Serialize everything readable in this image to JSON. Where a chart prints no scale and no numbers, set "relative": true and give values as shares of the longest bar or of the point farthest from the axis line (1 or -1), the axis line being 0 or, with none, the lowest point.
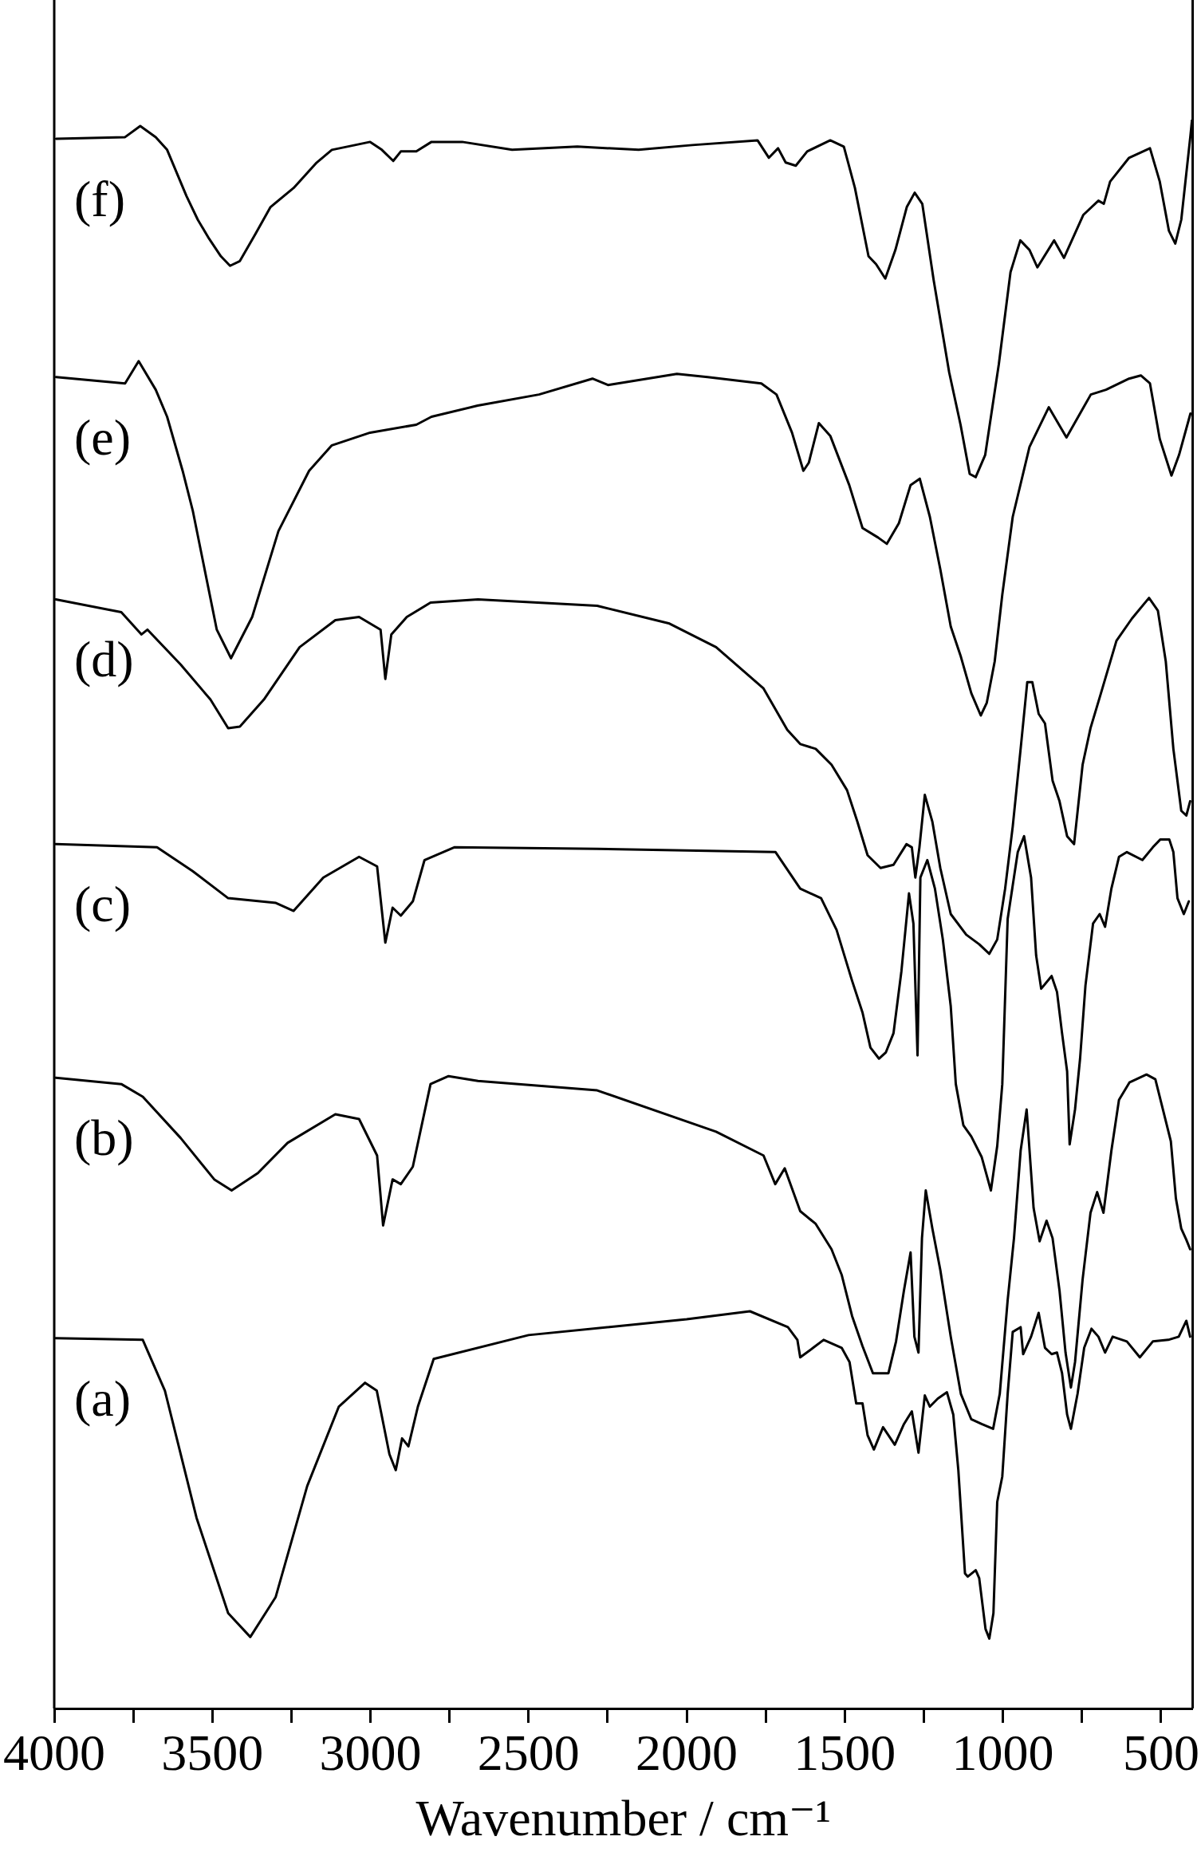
{
  "chart_data": {
    "type": "line",
    "relative": true,
    "xlabel": "Wavenumber / cm⁻¹",
    "xlim": [
      4000,
      400
    ],
    "xticks": [
      4000,
      {
        "value": 3750,
        "label": null
      },
      3500,
      {
        "value": 3250,
        "label": null
      },
      3000,
      {
        "value": 2750,
        "label": null
      },
      2500,
      {
        "value": 2250,
        "label": null
      },
      2000,
      {
        "value": 1750,
        "label": null
      },
      1500,
      {
        "value": 1250,
        "label": null
      },
      1000,
      {
        "value": 750,
        "label": null
      },
      500
    ],
    "grid": false,
    "legend": false,
    "marker": "none",
    "line_style": "solid",
    "tick_labels": "x",
    "series": [
      {
        "name": "(f)",
        "color": "#000000",
        "x": [
          3994,
          3776,
          3728,
          3679,
          3643,
          3582,
          3546,
          3510,
          3473,
          3444,
          3413,
          3364,
          3316,
          3243,
          3170,
          3122,
          3049,
          3001,
          2964,
          2928,
          2904,
          2855,
          2807,
          2710,
          2552,
          2346,
          2152,
          1982,
          1776,
          1740,
          1711,
          1687,
          1655,
          1619,
          1546,
          1503,
          1468,
          1425,
          1401,
          1372,
          1340,
          1304,
          1279,
          1255,
          1219,
          1170,
          1134,
          1105,
          1086,
          1056,
          1013,
          976,
          945,
          916,
          891,
          838,
          807,
          746,
          698,
          681,
          661,
          601,
          535,
          504,
          475,
          455,
          436,
          407,
          402
        ],
        "values": [
          0.988,
          0.989,
          0.996,
          0.989,
          0.981,
          0.952,
          0.937,
          0.925,
          0.914,
          0.908,
          0.911,
          0.928,
          0.945,
          0.957,
          0.973,
          0.981,
          0.984,
          0.986,
          0.981,
          0.974,
          0.98,
          0.98,
          0.986,
          0.986,
          0.981,
          0.983,
          0.981,
          0.984,
          0.987,
          0.976,
          0.982,
          0.973,
          0.971,
          0.98,
          0.987,
          0.983,
          0.957,
          0.914,
          0.909,
          0.9,
          0.918,
          0.945,
          0.954,
          0.947,
          0.899,
          0.841,
          0.808,
          0.777,
          0.775,
          0.789,
          0.846,
          0.904,
          0.924,
          0.918,
          0.907,
          0.924,
          0.913,
          0.94,
          0.949,
          0.947,
          0.961,
          0.976,
          0.982,
          0.961,
          0.93,
          0.922,
          0.937,
          0.99,
          1.0
        ]
      },
      {
        "name": "(e)",
        "color": "#000000",
        "x": [
          3994,
          3776,
          3733,
          3679,
          3643,
          3594,
          3562,
          3486,
          3441,
          3374,
          3291,
          3194,
          3122,
          3001,
          2855,
          2807,
          2661,
          2467,
          2298,
          2249,
          2031,
          1934,
          1764,
          1716,
          1667,
          1631,
          1614,
          1582,
          1546,
          1486,
          1444,
          1395,
          1367,
          1329,
          1292,
          1263,
          1231,
          1198,
          1165,
          1133,
          1100,
          1070,
          1051,
          1026,
          1002,
          969,
          916,
          855,
          799,
          722,
          674,
          601,
          564,
          535,
          504,
          467,
          443,
          407
        ],
        "values": [
          0.838,
          0.834,
          0.848,
          0.83,
          0.813,
          0.779,
          0.754,
          0.679,
          0.661,
          0.687,
          0.741,
          0.779,
          0.795,
          0.803,
          0.808,
          0.813,
          0.82,
          0.827,
          0.837,
          0.833,
          0.84,
          0.838,
          0.834,
          0.827,
          0.803,
          0.779,
          0.784,
          0.809,
          0.801,
          0.77,
          0.743,
          0.737,
          0.733,
          0.746,
          0.77,
          0.774,
          0.75,
          0.717,
          0.681,
          0.662,
          0.639,
          0.625,
          0.633,
          0.659,
          0.701,
          0.75,
          0.794,
          0.819,
          0.8,
          0.827,
          0.83,
          0.837,
          0.839,
          0.834,
          0.799,
          0.776,
          0.789,
          0.815
        ]
      },
      {
        "name": "(d)",
        "color": "#000000",
        "x": [
          3995,
          3788,
          3724,
          3705,
          3600,
          3506,
          3450,
          3413,
          3337,
          3224,
          3111,
          3036,
          2968,
          2953,
          2934,
          2885,
          2810,
          2660,
          2283,
          2057,
          1907,
          1757,
          1682,
          1641,
          1592,
          1542,
          1493,
          1460,
          1428,
          1387,
          1346,
          1305,
          1288,
          1277,
          1264,
          1247,
          1223,
          1198,
          1165,
          1116,
          1075,
          1043,
          1018,
          993,
          969,
          944,
          923,
          907,
          887,
          867,
          843,
          821,
          797,
          775,
          748,
          723,
          690,
          641,
          592,
          538,
          510,
          485,
          461,
          436,
          420,
          408
        ],
        "values": [
          0.698,
          0.69,
          0.676,
          0.679,
          0.657,
          0.635,
          0.617,
          0.618,
          0.635,
          0.668,
          0.685,
          0.687,
          0.679,
          0.648,
          0.676,
          0.687,
          0.696,
          0.698,
          0.694,
          0.683,
          0.668,
          0.642,
          0.616,
          0.607,
          0.604,
          0.594,
          0.578,
          0.558,
          0.537,
          0.529,
          0.531,
          0.544,
          0.542,
          0.523,
          0.542,
          0.575,
          0.558,
          0.529,
          0.5,
          0.487,
          0.481,
          0.475,
          0.484,
          0.516,
          0.555,
          0.604,
          0.646,
          0.646,
          0.626,
          0.62,
          0.584,
          0.571,
          0.549,
          0.544,
          0.594,
          0.617,
          0.639,
          0.672,
          0.686,
          0.699,
          0.691,
          0.659,
          0.604,
          0.565,
          0.562,
          0.571
        ]
      },
      {
        "name": "(c)",
        "color": "#000000",
        "x": [
          3995,
          3675,
          3562,
          3450,
          3299,
          3243,
          3149,
          3036,
          2979,
          2953,
          2930,
          2904,
          2866,
          2829,
          2735,
          2283,
          1719,
          1641,
          1575,
          1526,
          1477,
          1444,
          1419,
          1392,
          1370,
          1346,
          1321,
          1297,
          1283,
          1270,
          1261,
          1239,
          1215,
          1190,
          1165,
          1149,
          1125,
          1100,
          1067,
          1038,
          1018,
          1002,
          985,
          953,
          933,
          911,
          895,
          879,
          846,
          829,
          813,
          797,
          789,
          772,
          756,
          739,
          715,
          694,
          677,
          657,
          633,
          608,
          559,
          526,
          502,
          474,
          461,
          448,
          428,
          412
        ],
        "values": [
          0.544,
          0.542,
          0.527,
          0.51,
          0.507,
          0.502,
          0.523,
          0.536,
          0.53,
          0.482,
          0.504,
          0.499,
          0.508,
          0.534,
          0.542,
          0.541,
          0.539,
          0.516,
          0.51,
          0.49,
          0.458,
          0.438,
          0.416,
          0.409,
          0.413,
          0.425,
          0.464,
          0.513,
          0.494,
          0.411,
          0.523,
          0.534,
          0.516,
          0.484,
          0.442,
          0.393,
          0.367,
          0.36,
          0.347,
          0.326,
          0.354,
          0.393,
          0.497,
          0.539,
          0.549,
          0.523,
          0.474,
          0.453,
          0.461,
          0.451,
          0.425,
          0.401,
          0.355,
          0.377,
          0.409,
          0.455,
          0.494,
          0.5,
          0.492,
          0.516,
          0.536,
          0.539,
          0.534,
          0.542,
          0.547,
          0.547,
          0.539,
          0.51,
          0.5,
          0.508
        ]
      },
      {
        "name": "(b)",
        "color": "#000000",
        "x": [
          3995,
          3788,
          3720,
          3600,
          3494,
          3439,
          3356,
          3262,
          3111,
          3036,
          2979,
          2960,
          2930,
          2904,
          2866,
          2810,
          2753,
          2660,
          2283,
          1907,
          1757,
          1720,
          1690,
          1641,
          1592,
          1542,
          1510,
          1477,
          1444,
          1411,
          1362,
          1338,
          1313,
          1292,
          1280,
          1267,
          1256,
          1244,
          1223,
          1198,
          1165,
          1133,
          1100,
          1067,
          1031,
          1010,
          985,
          965,
          944,
          925,
          903,
          884,
          862,
          843,
          821,
          802,
          785,
          772,
          748,
          723,
          702,
          682,
          657,
          633,
          600,
          546,
          518,
          494,
          469,
          453,
          436,
          420,
          408
        ],
        "values": [
          0.397,
          0.393,
          0.385,
          0.359,
          0.333,
          0.326,
          0.337,
          0.356,
          0.374,
          0.371,
          0.348,
          0.304,
          0.333,
          0.33,
          0.341,
          0.393,
          0.398,
          0.395,
          0.389,
          0.363,
          0.348,
          0.33,
          0.34,
          0.313,
          0.305,
          0.289,
          0.273,
          0.247,
          0.228,
          0.211,
          0.211,
          0.231,
          0.263,
          0.287,
          0.234,
          0.224,
          0.296,
          0.326,
          0.302,
          0.276,
          0.234,
          0.198,
          0.182,
          0.179,
          0.176,
          0.198,
          0.257,
          0.296,
          0.351,
          0.377,
          0.315,
          0.294,
          0.307,
          0.296,
          0.263,
          0.224,
          0.202,
          0.218,
          0.27,
          0.312,
          0.325,
          0.312,
          0.351,
          0.383,
          0.394,
          0.399,
          0.396,
          0.377,
          0.357,
          0.321,
          0.302,
          0.295,
          0.289
        ]
      },
      {
        "name": "(a)",
        "color": "#000000",
        "x": [
          3995,
          3720,
          3650,
          3550,
          3450,
          3380,
          3300,
          3200,
          3100,
          3017,
          2980,
          2940,
          2920,
          2900,
          2880,
          2850,
          2800,
          2500,
          2000,
          1800,
          1680,
          1650,
          1641,
          1600,
          1567,
          1510,
          1485,
          1464,
          1444,
          1428,
          1408,
          1379,
          1342,
          1313,
          1288,
          1267,
          1247,
          1231,
          1206,
          1177,
          1157,
          1141,
          1120,
          1111,
          1086,
          1075,
          1055,
          1043,
          1030,
          1018,
          1002,
          985,
          969,
          944,
          936,
          911,
          887,
          867,
          846,
          829,
          813,
          797,
          785,
          764,
          743,
          720,
          698,
          677,
          653,
          608,
          567,
          526,
          477,
          444,
          420,
          408
        ],
        "values": [
          0.233,
          0.232,
          0.2,
          0.12,
          0.06,
          0.045,
          0.07,
          0.14,
          0.19,
          0.205,
          0.2,
          0.16,
          0.15,
          0.17,
          0.165,
          0.19,
          0.22,
          0.235,
          0.245,
          0.25,
          0.24,
          0.232,
          0.221,
          0.227,
          0.232,
          0.227,
          0.218,
          0.192,
          0.192,
          0.172,
          0.163,
          0.177,
          0.166,
          0.179,
          0.187,
          0.161,
          0.197,
          0.19,
          0.195,
          0.199,
          0.185,
          0.15,
          0.085,
          0.083,
          0.087,
          0.082,
          0.05,
          0.044,
          0.06,
          0.13,
          0.146,
          0.198,
          0.237,
          0.24,
          0.223,
          0.234,
          0.249,
          0.227,
          0.223,
          0.224,
          0.211,
          0.185,
          0.176,
          0.198,
          0.227,
          0.239,
          0.234,
          0.224,
          0.234,
          0.231,
          0.221,
          0.231,
          0.232,
          0.234,
          0.244,
          0.234
        ]
      }
    ]
  }
}
